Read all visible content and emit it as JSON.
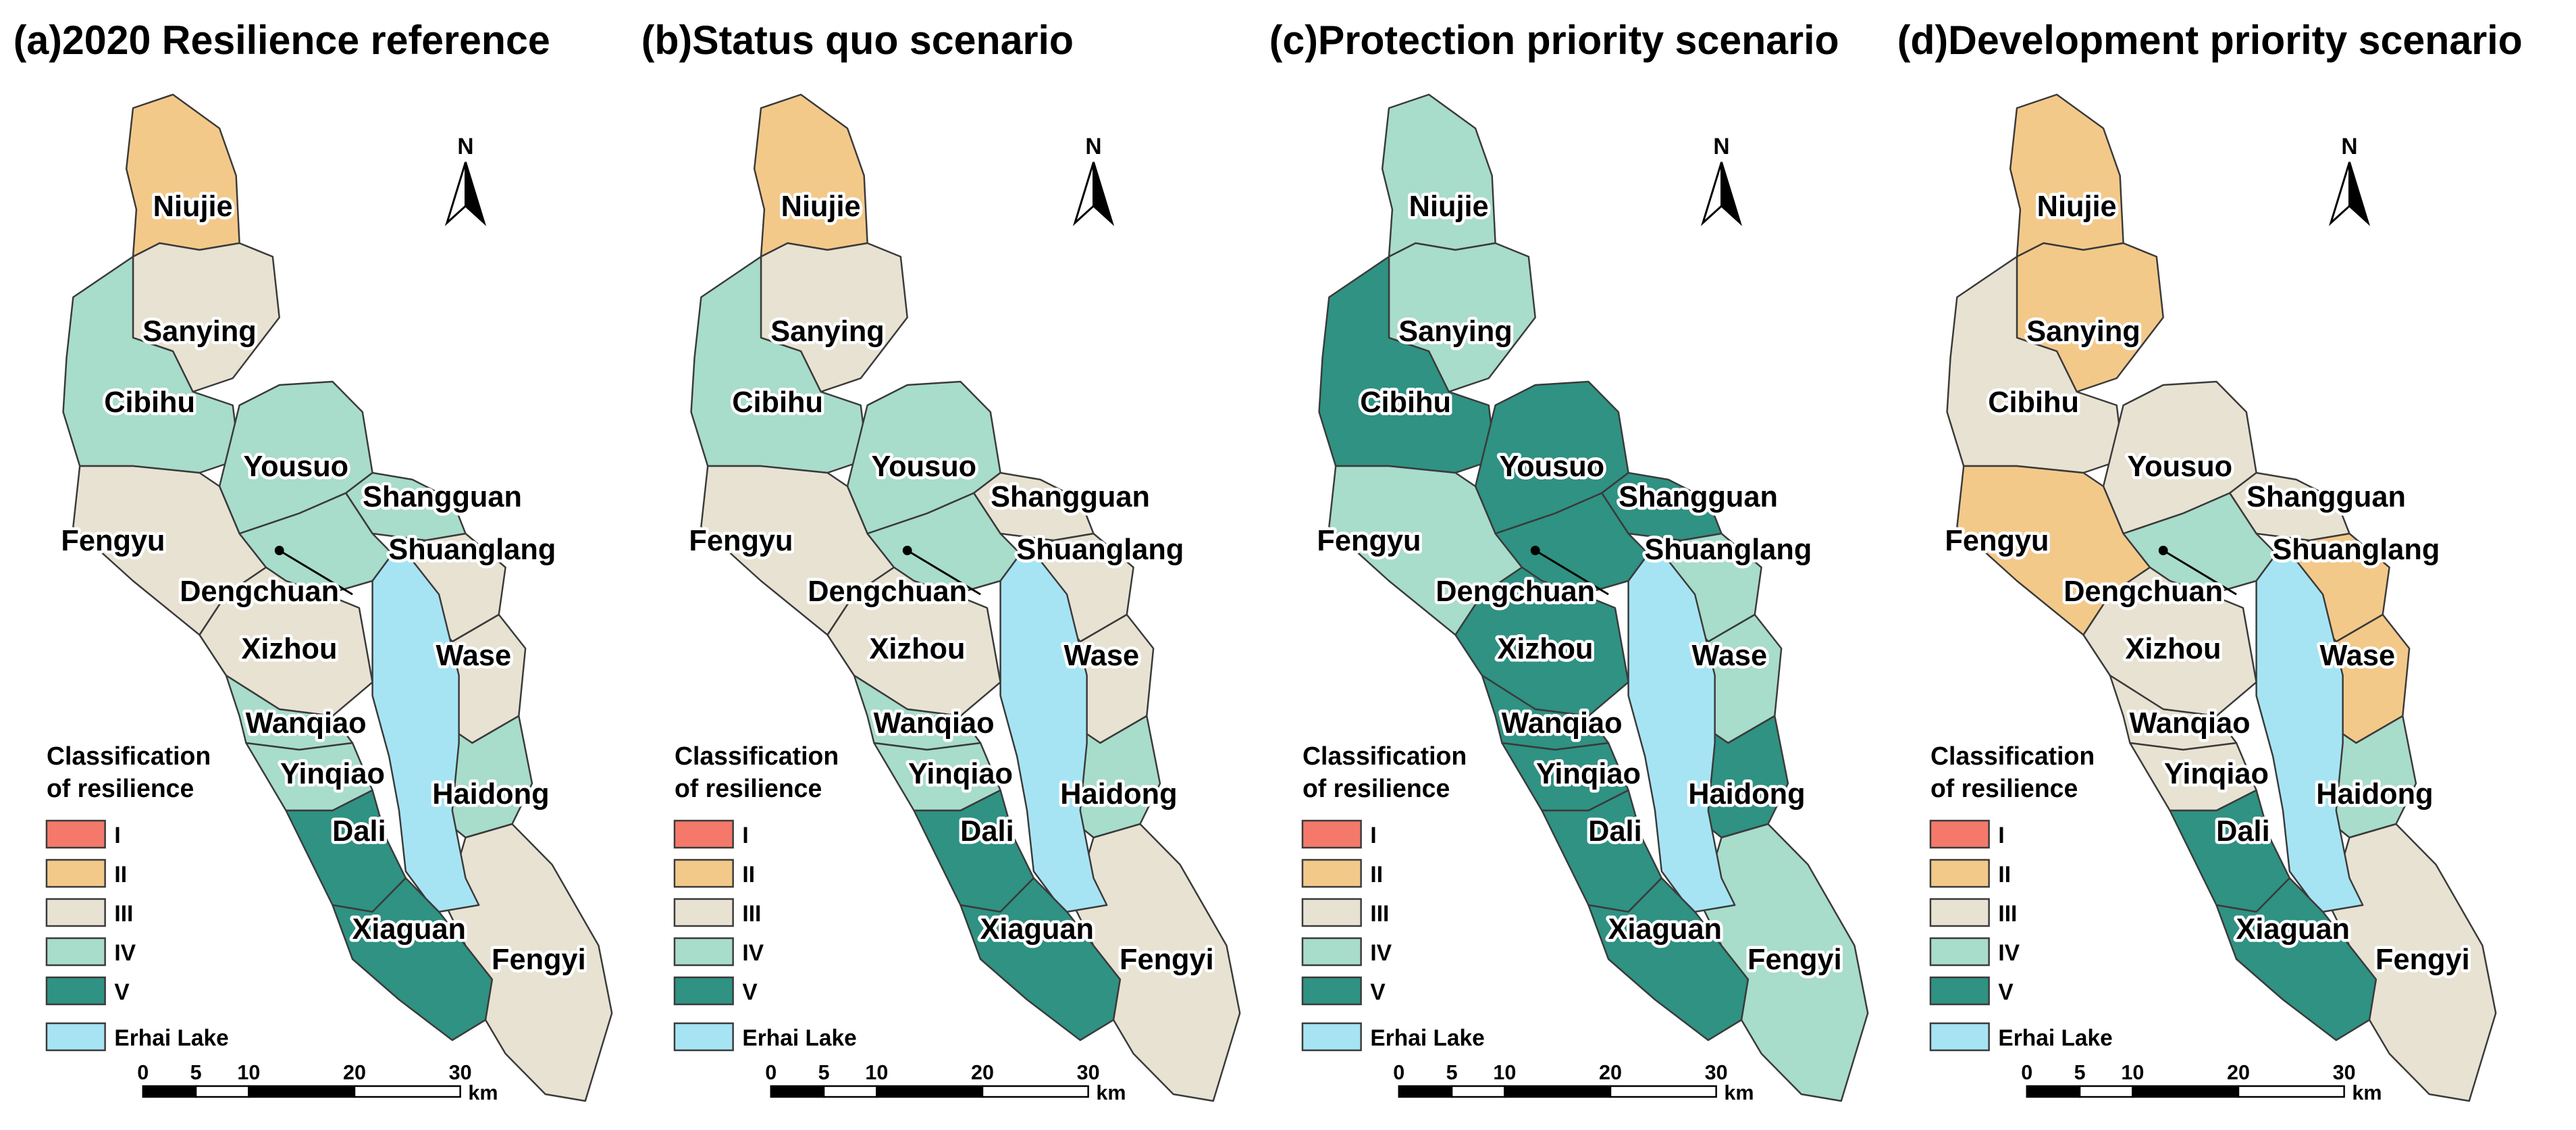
{
  "legend": {
    "title_line1": "Classification",
    "title_line2": "of resilience",
    "classes": [
      {
        "label": "I",
        "color": "#f4796a"
      },
      {
        "label": "II",
        "color": "#f3c98a"
      },
      {
        "label": "III",
        "color": "#e8e2d2"
      },
      {
        "label": "IV",
        "color": "#a8dccb"
      },
      {
        "label": "V",
        "color": "#2f9283"
      }
    ],
    "lake": {
      "label": "Erhai Lake",
      "color": "#a6e4f4"
    }
  },
  "north_label": "N",
  "scale_bar": {
    "ticks": [
      "0",
      "5",
      "10",
      "20",
      "30"
    ],
    "unit": "km"
  },
  "towns": [
    "Niujie",
    "Sanying",
    "Cibihu",
    "Yousuo",
    "Shangguan",
    "Fengyu",
    "Shuanglang",
    "Dengchuan",
    "Xizhou",
    "Wase",
    "Wanqiao",
    "Yinqiao",
    "Haidong",
    "Dali",
    "Xiaguan",
    "Fengyi"
  ],
  "panels": [
    {
      "title": "(a)2020 Resilience reference",
      "classes": {
        "Niujie": "II",
        "Sanying": "III",
        "Cibihu": "IV",
        "Yousuo": "IV",
        "Shangguan": "IV",
        "Fengyu": "III",
        "Shuanglang": "III",
        "Dengchuan": "IV",
        "Xizhou": "III",
        "Wase": "III",
        "Wanqiao": "IV",
        "Yinqiao": "IV",
        "Haidong": "IV",
        "Dali": "V",
        "Xiaguan": "V",
        "Fengyi": "III"
      }
    },
    {
      "title": "(b)Status quo scenario",
      "classes": {
        "Niujie": "II",
        "Sanying": "III",
        "Cibihu": "IV",
        "Yousuo": "IV",
        "Shangguan": "III",
        "Fengyu": "III",
        "Shuanglang": "III",
        "Dengchuan": "IV",
        "Xizhou": "III",
        "Wase": "III",
        "Wanqiao": "IV",
        "Yinqiao": "IV",
        "Haidong": "IV",
        "Dali": "V",
        "Xiaguan": "V",
        "Fengyi": "III"
      }
    },
    {
      "title": "(c)Protection priority scenario",
      "classes": {
        "Niujie": "IV",
        "Sanying": "IV",
        "Cibihu": "V",
        "Yousuo": "V",
        "Shangguan": "V",
        "Fengyu": "IV",
        "Shuanglang": "IV",
        "Dengchuan": "V",
        "Xizhou": "V",
        "Wase": "IV",
        "Wanqiao": "V",
        "Yinqiao": "V",
        "Haidong": "V",
        "Dali": "V",
        "Xiaguan": "V",
        "Fengyi": "IV"
      }
    },
    {
      "title": "(d)Development priority scenario",
      "classes": {
        "Niujie": "II",
        "Sanying": "II",
        "Cibihu": "III",
        "Yousuo": "III",
        "Shangguan": "III",
        "Fengyu": "II",
        "Shuanglang": "II",
        "Dengchuan": "IV",
        "Xizhou": "III",
        "Wase": "II",
        "Wanqiao": "III",
        "Yinqiao": "III",
        "Haidong": "IV",
        "Dali": "V",
        "Xiaguan": "V",
        "Fengyi": "III"
      }
    }
  ]
}
